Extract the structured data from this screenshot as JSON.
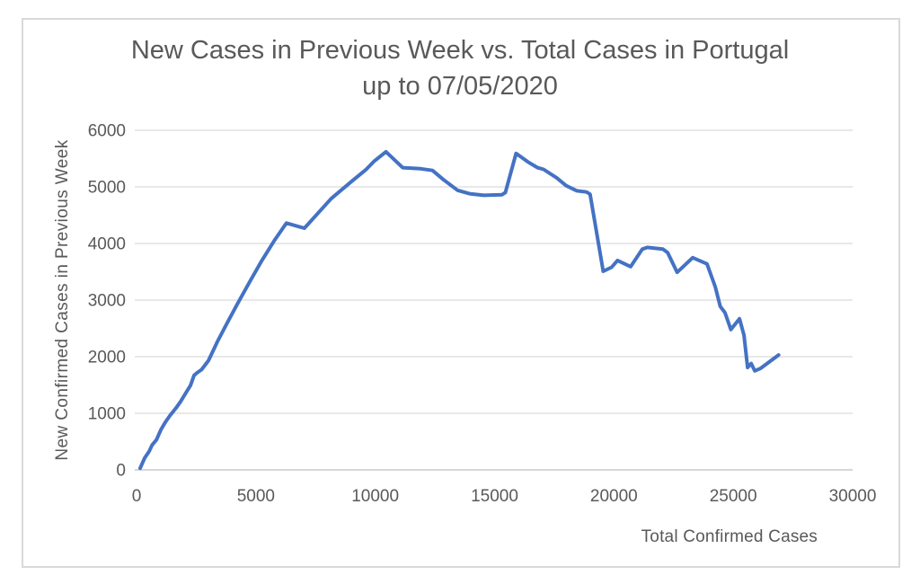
{
  "colors": {
    "line": "#4472C4",
    "text": "#595959",
    "gridline": "#D9D9D9",
    "axis_line": "#BFBFBF",
    "frame_border": "#D9D9D9",
    "background": "#FFFFFF"
  },
  "chart_data": {
    "type": "line",
    "title": "New Cases in Previous Week vs. Total Cases in Portugal up to 07/05/2020",
    "title_line1": "New Cases in Previous Week vs. Total Cases in Portugal",
    "title_line2": "up to 07/05/2020",
    "xlabel": "Total Confirmed Cases",
    "ylabel": "New Confirmed Cases in Previous Week",
    "xlim": [
      0,
      30000
    ],
    "ylim": [
      0,
      6000
    ],
    "x_ticks": [
      0,
      5000,
      10000,
      15000,
      20000,
      25000,
      30000
    ],
    "y_ticks": [
      0,
      1000,
      2000,
      3000,
      4000,
      5000,
      6000
    ],
    "grid": "horizontal-only",
    "legend_position": "none",
    "series": [
      {
        "name": "New confirmed cases in previous week",
        "points": [
          [
            150,
            30
          ],
          [
            340,
            210
          ],
          [
            530,
            330
          ],
          [
            650,
            440
          ],
          [
            830,
            530
          ],
          [
            1020,
            710
          ],
          [
            1200,
            840
          ],
          [
            1400,
            960
          ],
          [
            1650,
            1090
          ],
          [
            1850,
            1210
          ],
          [
            2050,
            1350
          ],
          [
            2260,
            1490
          ],
          [
            2410,
            1670
          ],
          [
            2550,
            1720
          ],
          [
            2720,
            1770
          ],
          [
            3010,
            1930
          ],
          [
            3390,
            2270
          ],
          [
            3800,
            2600
          ],
          [
            4250,
            2950
          ],
          [
            4750,
            3330
          ],
          [
            5250,
            3700
          ],
          [
            5800,
            4070
          ],
          [
            6280,
            4360
          ],
          [
            7030,
            4270
          ],
          [
            8150,
            4790
          ],
          [
            9020,
            5100
          ],
          [
            9600,
            5300
          ],
          [
            9950,
            5450
          ],
          [
            10450,
            5620
          ],
          [
            11150,
            5340
          ],
          [
            11900,
            5320
          ],
          [
            12400,
            5290
          ],
          [
            12850,
            5130
          ],
          [
            13450,
            4940
          ],
          [
            13950,
            4880
          ],
          [
            14550,
            4850
          ],
          [
            15300,
            4860
          ],
          [
            15450,
            4900
          ],
          [
            15900,
            5590
          ],
          [
            16400,
            5440
          ],
          [
            16800,
            5340
          ],
          [
            17050,
            5310
          ],
          [
            17600,
            5160
          ],
          [
            18000,
            5020
          ],
          [
            18450,
            4930
          ],
          [
            18850,
            4910
          ],
          [
            19000,
            4870
          ],
          [
            19550,
            3510
          ],
          [
            19900,
            3580
          ],
          [
            20150,
            3700
          ],
          [
            20400,
            3650
          ],
          [
            20700,
            3590
          ],
          [
            21190,
            3900
          ],
          [
            21400,
            3930
          ],
          [
            22050,
            3900
          ],
          [
            22250,
            3840
          ],
          [
            22650,
            3490
          ],
          [
            23300,
            3750
          ],
          [
            23900,
            3640
          ],
          [
            24250,
            3230
          ],
          [
            24450,
            2890
          ],
          [
            24650,
            2780
          ],
          [
            24900,
            2480
          ],
          [
            25260,
            2670
          ],
          [
            25450,
            2380
          ],
          [
            25600,
            1810
          ],
          [
            25750,
            1880
          ],
          [
            25900,
            1750
          ],
          [
            26150,
            1795
          ],
          [
            26900,
            2030
          ]
        ]
      }
    ]
  }
}
